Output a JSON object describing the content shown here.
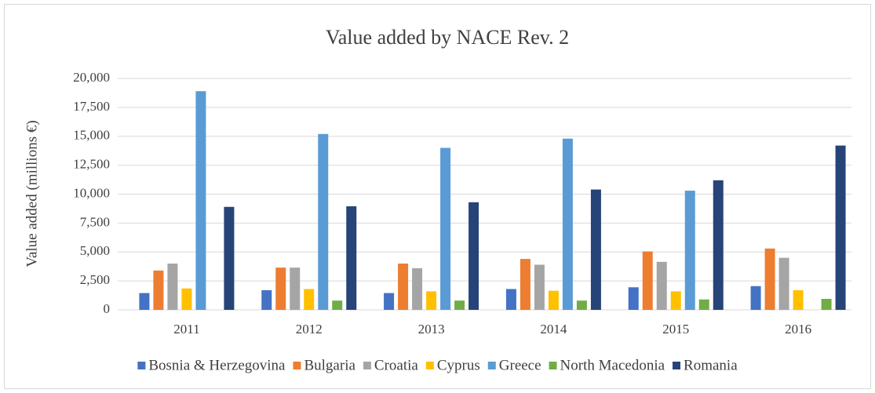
{
  "chart_data": {
    "type": "bar",
    "title": "Value added by NACE Rev. 2",
    "y_label": "Value added (millions €)",
    "categories": [
      "2011",
      "2012",
      "2013",
      "2014",
      "2015",
      "2016"
    ],
    "series": [
      {
        "name": "Bosnia & Herzegovina",
        "color": "#4472c4",
        "values": [
          1450,
          1700,
          1450,
          1800,
          1950,
          2050
        ]
      },
      {
        "name": "Bulgaria",
        "color": "#ed7d31",
        "values": [
          3400,
          3650,
          4000,
          4400,
          5050,
          5300
        ]
      },
      {
        "name": "Croatia",
        "color": "#a5a5a5",
        "values": [
          4000,
          3650,
          3600,
          3900,
          4150,
          4500
        ]
      },
      {
        "name": "Cyprus",
        "color": "#ffc000",
        "values": [
          1850,
          1800,
          1600,
          1650,
          1600,
          1700
        ]
      },
      {
        "name": "Greece",
        "color": "#5b9bd5",
        "values": [
          18900,
          15200,
          14000,
          14800,
          10300,
          null
        ]
      },
      {
        "name": "North Macedonia",
        "color": "#70ad47",
        "values": [
          null,
          800,
          800,
          800,
          900,
          950
        ]
      },
      {
        "name": "Romania",
        "color": "#264478",
        "values": [
          8900,
          8950,
          9300,
          10400,
          11200,
          14200
        ]
      }
    ],
    "ylim": [
      0,
      20000
    ],
    "yticks": [
      0,
      {
        "value": 2500,
        "label": "2,500"
      },
      {
        "value": 5000,
        "label": "5,000"
      },
      {
        "value": 7500,
        "label": "7,500"
      },
      {
        "value": 10000,
        "label": "10,000"
      },
      {
        "value": 12500,
        "label": "12,500"
      },
      {
        "value": 15000,
        "label": "15,000"
      },
      {
        "value": 17500,
        "label": "17,500"
      },
      {
        "value": 20000,
        "label": "20,000"
      }
    ],
    "grid": true,
    "legend": "bottom"
  }
}
